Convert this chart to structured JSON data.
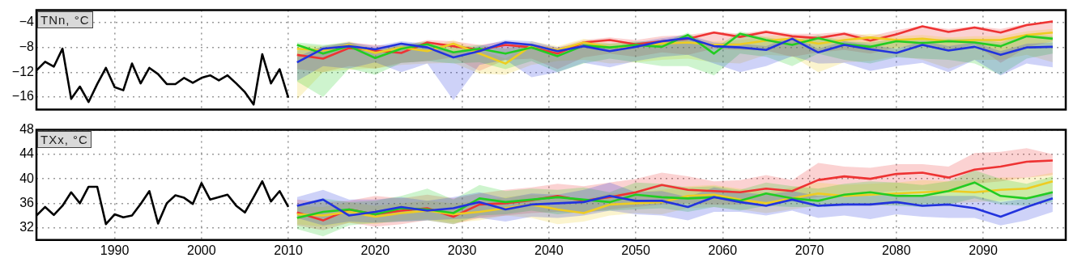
{
  "chart_data": [
    {
      "type": "line",
      "title": "TNn, °C",
      "xlim": [
        1981,
        2099.5
      ],
      "xticks": [
        1990,
        2000,
        2010,
        2020,
        2030,
        2040,
        2050,
        2060,
        2070,
        2080,
        2090
      ],
      "ylim": [
        -18,
        -2
      ],
      "yticks": [
        -4,
        -8,
        -12,
        -16
      ],
      "grid": true,
      "tick_labels": "y",
      "line_style": "solid",
      "marker": "none",
      "series": [
        {
          "color": "#000000",
          "x": [
            1981,
            1982,
            1983,
            1984,
            1985,
            1986,
            1987,
            1988,
            1989,
            1990,
            1991,
            1992,
            1993,
            1994,
            1995,
            1996,
            1997,
            1998,
            1999,
            2000,
            2001,
            2002,
            2003,
            2004,
            2005,
            2006,
            2007,
            2008,
            2009,
            2010
          ],
          "values": [
            -11.7,
            -10.3,
            -11.1,
            -8.2,
            -16.3,
            -14.3,
            -16.8,
            -13.9,
            -11.3,
            -14.4,
            -14.9,
            -10.6,
            -13.8,
            -11.3,
            -12.3,
            -13.9,
            -13.9,
            -12.9,
            -13.7,
            -12.9,
            -12.5,
            -13.3,
            -12.5,
            -13.8,
            -15.2,
            -17.2,
            -9.1,
            -13.8,
            -11.5,
            -16.1
          ]
        },
        {
          "color": "#2233dd",
          "x": [
            2011,
            2014,
            2017,
            2020,
            2023,
            2026,
            2029,
            2032,
            2035,
            2038,
            2041,
            2044,
            2047,
            2050,
            2053,
            2056,
            2059,
            2062,
            2065,
            2068,
            2071,
            2074,
            2077,
            2080,
            2083,
            2086,
            2089,
            2092,
            2095,
            2098
          ],
          "values": [
            -10.4,
            -8.2,
            -7.8,
            -8.3,
            -7.4,
            -8.0,
            -9.6,
            -8.6,
            -7.2,
            -7.6,
            -8.6,
            -7.8,
            -8.6,
            -7.9,
            -7.0,
            -6.5,
            -7.8,
            -8.0,
            -8.4,
            -6.6,
            -8.8,
            -7.6,
            -8.3,
            -8.9,
            -7.6,
            -8.5,
            -7.9,
            -9.2,
            -8.0,
            -7.9
          ],
          "lower": [
            -13.4,
            -11.0,
            -11.4,
            -10.4,
            -12.0,
            -10.6,
            -16.5,
            -10.8,
            -10.0,
            -12.8,
            -12.0,
            -10.5,
            -11.2,
            -10.2,
            -9.5,
            -9.2,
            -10.6,
            -12.0,
            -11.0,
            -9.4,
            -10.6,
            -10.5,
            -11.8,
            -11.0,
            -10.5,
            -12.0,
            -10.0,
            -12.5,
            -10.6,
            -11.2
          ],
          "upper": [
            -9.5,
            -7.8,
            -7.2,
            -7.8,
            -7.0,
            -7.4,
            -8.8,
            -7.8,
            -6.8,
            -7.0,
            -8.0,
            -7.3,
            -8.0,
            -7.2,
            -6.5,
            -6.0,
            -7.2,
            -7.4,
            -7.8,
            -6.2,
            -8.2,
            -7.0,
            -7.6,
            -8.2,
            -7.0,
            -7.8,
            -7.2,
            -8.6,
            -7.4,
            -7.2
          ]
        },
        {
          "color": "#22cc22",
          "x": [
            2011,
            2014,
            2017,
            2020,
            2023,
            2026,
            2029,
            2032,
            2035,
            2038,
            2041,
            2044,
            2047,
            2050,
            2053,
            2056,
            2059,
            2062,
            2065,
            2068,
            2071,
            2074,
            2077,
            2080,
            2083,
            2086,
            2089,
            2092,
            2095,
            2098
          ],
          "values": [
            -7.6,
            -9.0,
            -7.8,
            -9.7,
            -8.2,
            -7.5,
            -8.8,
            -8.2,
            -9.0,
            -8.0,
            -9.4,
            -7.7,
            -8.0,
            -7.6,
            -7.9,
            -6.0,
            -9.0,
            -5.8,
            -6.8,
            -7.6,
            -6.5,
            -7.5,
            -7.9,
            -7.0,
            -7.3,
            -7.0,
            -7.2,
            -7.8,
            -6.2,
            -6.6
          ],
          "lower": [
            -13.5,
            -16.0,
            -11.4,
            -12.4,
            -10.5,
            -10.2,
            -10.6,
            -10.4,
            -11.5,
            -10.2,
            -12.0,
            -10.6,
            -9.8,
            -10.4,
            -11.0,
            -11.0,
            -12.5,
            -9.0,
            -9.5,
            -11.0,
            -9.0,
            -10.0,
            -10.6,
            -9.6,
            -9.8,
            -10.0,
            -10.6,
            -12.4,
            -9.8,
            -9.0
          ],
          "upper": [
            -7.2,
            -7.6,
            -7.2,
            -8.6,
            -7.6,
            -7.0,
            -8.0,
            -7.6,
            -8.2,
            -7.4,
            -8.6,
            -7.2,
            -7.4,
            -7.0,
            -7.2,
            -5.6,
            -8.2,
            -5.4,
            -6.4,
            -7.0,
            -6.0,
            -7.0,
            -7.2,
            -6.6,
            -6.8,
            -6.6,
            -6.6,
            -7.2,
            -5.8,
            -6.2
          ]
        },
        {
          "color": "#eecc22",
          "x": [
            2011,
            2014,
            2017,
            2020,
            2023,
            2026,
            2029,
            2032,
            2035,
            2038,
            2041,
            2044,
            2047,
            2050,
            2053,
            2056,
            2059,
            2062,
            2065,
            2068,
            2071,
            2074,
            2077,
            2080,
            2083,
            2086,
            2089,
            2092,
            2095,
            2098
          ],
          "values": [
            -8.2,
            -8.5,
            -7.6,
            -8.9,
            -8.0,
            -8.6,
            -7.4,
            -9.0,
            -10.6,
            -7.7,
            -8.4,
            -7.2,
            -8.0,
            -7.8,
            -7.4,
            -7.2,
            -7.6,
            -7.5,
            -6.9,
            -6.6,
            -7.4,
            -6.8,
            -6.4,
            -6.8,
            -6.6,
            -7.0,
            -6.8,
            -6.8,
            -6.0,
            -5.6
          ],
          "lower": [
            -16.4,
            -12.0,
            -11.6,
            -11.4,
            -10.8,
            -10.6,
            -10.5,
            -12.2,
            -12.4,
            -10.8,
            -10.2,
            -10.0,
            -10.6,
            -10.4,
            -10.0,
            -9.8,
            -10.4,
            -10.6,
            -9.2,
            -9.4,
            -12.0,
            -10.4,
            -10.2,
            -9.4,
            -10.0,
            -11.4,
            -10.0,
            -10.0,
            -9.2,
            -10.4
          ],
          "upper": [
            -7.6,
            -7.8,
            -7.0,
            -8.2,
            -7.4,
            -8.0,
            -6.8,
            -8.4,
            -9.8,
            -7.0,
            -7.8,
            -6.6,
            -7.4,
            -7.2,
            -6.8,
            -6.6,
            -7.0,
            -6.8,
            -6.2,
            -6.0,
            -6.8,
            -6.2,
            -5.8,
            -6.2,
            -6.0,
            -6.4,
            -6.2,
            -6.2,
            -5.4,
            -5.0
          ]
        },
        {
          "color": "#ee3333",
          "x": [
            2011,
            2014,
            2017,
            2020,
            2023,
            2026,
            2029,
            2032,
            2035,
            2038,
            2041,
            2044,
            2047,
            2050,
            2053,
            2056,
            2059,
            2062,
            2065,
            2068,
            2071,
            2074,
            2077,
            2080,
            2083,
            2086,
            2089,
            2092,
            2095,
            2098
          ],
          "values": [
            -9.2,
            -9.8,
            -8.1,
            -8.5,
            -8.9,
            -7.2,
            -7.8,
            -8.4,
            -7.6,
            -8.0,
            -9.0,
            -7.2,
            -6.8,
            -7.5,
            -7.0,
            -6.6,
            -5.6,
            -6.3,
            -5.5,
            -6.2,
            -6.5,
            -5.8,
            -6.9,
            -5.9,
            -4.6,
            -5.5,
            -4.8,
            -5.6,
            -4.4,
            -3.8
          ],
          "lower": [
            -11.5,
            -12.0,
            -11.0,
            -11.4,
            -10.5,
            -10.2,
            -9.6,
            -11.8,
            -10.0,
            -9.8,
            -11.5,
            -9.6,
            -9.0,
            -9.5,
            -8.8,
            -9.2,
            -8.2,
            -8.4,
            -8.5,
            -9.5,
            -8.8,
            -8.4,
            -9.0,
            -8.0,
            -7.8,
            -8.6,
            -7.5,
            -10.5,
            -8.0,
            -7.0
          ],
          "upper": [
            -8.5,
            -8.0,
            -7.2,
            -7.6,
            -7.8,
            -6.8,
            -7.0,
            -7.6,
            -7.0,
            -7.4,
            -8.0,
            -6.8,
            -6.4,
            -6.8,
            -6.2,
            -6.0,
            -5.4,
            -5.8,
            -5.2,
            -5.8,
            -5.8,
            -5.5,
            -6.2,
            -5.2,
            -4.5,
            -5.0,
            -4.6,
            -5.0,
            -4.2,
            -3.6
          ]
        }
      ]
    },
    {
      "type": "line",
      "title": "TXx, °C",
      "xlim": [
        1981,
        2099.5
      ],
      "xticks": [
        1990,
        2000,
        2010,
        2020,
        2030,
        2040,
        2050,
        2060,
        2070,
        2080,
        2090
      ],
      "ylim": [
        30,
        48
      ],
      "yticks": [
        32,
        36,
        40,
        44,
        48
      ],
      "grid": true,
      "line_style": "solid",
      "marker": "none",
      "series": [
        {
          "color": "#000000",
          "x": [
            1981,
            1982,
            1983,
            1984,
            1985,
            1986,
            1987,
            1988,
            1989,
            1990,
            1991,
            1992,
            1993,
            1994,
            1995,
            1996,
            1997,
            1998,
            1999,
            2000,
            2001,
            2002,
            2003,
            2004,
            2005,
            2006,
            2007,
            2008,
            2009,
            2010
          ],
          "values": [
            34.0,
            35.4,
            34.1,
            35.6,
            37.8,
            36.0,
            38.7,
            38.7,
            32.6,
            34.2,
            33.7,
            34.0,
            35.9,
            38.0,
            32.7,
            36.0,
            37.3,
            36.9,
            35.9,
            39.3,
            36.6,
            37.0,
            37.4,
            35.6,
            34.5,
            37.0,
            39.6,
            36.3,
            38.0,
            35.4
          ]
        },
        {
          "color": "#2233dd",
          "x": [
            2011,
            2014,
            2017,
            2020,
            2023,
            2026,
            2029,
            2032,
            2035,
            2038,
            2041,
            2044,
            2047,
            2050,
            2053,
            2056,
            2059,
            2062,
            2065,
            2068,
            2071,
            2074,
            2077,
            2080,
            2083,
            2086,
            2089,
            2092,
            2095,
            2098
          ],
          "values": [
            35.6,
            36.6,
            34.0,
            34.6,
            35.4,
            34.8,
            35.2,
            36.2,
            35.0,
            35.8,
            36.0,
            36.2,
            37.2,
            36.4,
            36.4,
            35.4,
            37.0,
            36.2,
            35.6,
            36.6,
            35.6,
            35.8,
            35.8,
            36.2,
            35.6,
            35.8,
            35.2,
            33.8,
            35.4,
            36.8
          ],
          "lower": [
            33.6,
            32.4,
            33.0,
            32.8,
            33.0,
            33.2,
            33.4,
            33.6,
            33.0,
            33.8,
            33.6,
            34.0,
            34.8,
            34.2,
            34.0,
            33.2,
            34.6,
            34.6,
            34.0,
            34.8,
            33.6,
            34.0,
            33.4,
            34.2,
            33.8,
            33.6,
            33.6,
            32.4,
            33.2,
            34.6
          ],
          "upper": [
            37.0,
            38.2,
            36.6,
            36.6,
            37.0,
            36.4,
            37.0,
            37.8,
            36.8,
            37.6,
            37.4,
            38.2,
            39.4,
            37.8,
            38.0,
            37.0,
            38.6,
            37.8,
            37.4,
            38.0,
            37.2,
            37.4,
            37.2,
            37.6,
            37.2,
            37.2,
            37.2,
            36.2,
            36.8,
            38.0
          ]
        },
        {
          "color": "#22cc22",
          "x": [
            2011,
            2014,
            2017,
            2020,
            2023,
            2026,
            2029,
            2032,
            2035,
            2038,
            2041,
            2044,
            2047,
            2050,
            2053,
            2056,
            2059,
            2062,
            2065,
            2068,
            2071,
            2074,
            2077,
            2080,
            2083,
            2086,
            2089,
            2092,
            2095,
            2098
          ],
          "values": [
            33.6,
            34.6,
            35.0,
            34.2,
            35.2,
            35.0,
            34.4,
            36.8,
            36.2,
            36.6,
            37.0,
            36.6,
            36.2,
            37.4,
            37.0,
            36.8,
            37.0,
            36.4,
            37.6,
            36.8,
            36.4,
            37.4,
            37.8,
            37.2,
            37.2,
            38.0,
            39.4,
            37.2,
            36.8,
            37.8
          ],
          "lower": [
            31.8,
            30.6,
            32.4,
            32.8,
            33.0,
            33.2,
            32.6,
            34.0,
            34.2,
            34.8,
            34.2,
            34.6,
            34.8,
            35.0,
            35.2,
            34.6,
            35.4,
            34.8,
            35.6,
            35.4,
            35.4,
            35.6,
            35.8,
            35.6,
            35.4,
            35.8,
            36.8,
            35.8,
            35.6,
            36.2
          ],
          "upper": [
            35.8,
            36.8,
            36.2,
            36.4,
            37.2,
            38.4,
            36.6,
            39.0,
            38.0,
            38.4,
            38.2,
            38.6,
            37.8,
            39.4,
            39.2,
            38.6,
            38.8,
            38.2,
            39.4,
            38.8,
            38.4,
            39.2,
            39.6,
            39.4,
            39.0,
            39.6,
            41.4,
            40.0,
            39.2,
            40.4
          ]
        },
        {
          "color": "#eecc22",
          "x": [
            2011,
            2014,
            2017,
            2020,
            2023,
            2026,
            2029,
            2032,
            2035,
            2038,
            2041,
            2044,
            2047,
            2050,
            2053,
            2056,
            2059,
            2062,
            2065,
            2068,
            2071,
            2074,
            2077,
            2080,
            2083,
            2086,
            2089,
            2092,
            2095,
            2098
          ],
          "values": [
            34.2,
            34.0,
            34.6,
            33.8,
            34.4,
            34.8,
            34.2,
            34.6,
            35.2,
            35.8,
            35.0,
            34.4,
            35.8,
            36.0,
            36.2,
            37.2,
            37.4,
            36.6,
            36.0,
            36.8,
            37.6,
            37.2,
            37.4,
            37.6,
            37.8,
            38.0,
            37.8,
            38.2,
            38.4,
            39.6
          ],
          "lower": [
            32.6,
            32.2,
            32.8,
            32.6,
            33.2,
            33.4,
            32.8,
            33.2,
            34.0,
            33.6,
            32.6,
            33.0,
            34.0,
            34.4,
            34.2,
            35.2,
            35.4,
            35.0,
            34.4,
            35.0,
            35.6,
            35.8,
            35.6,
            35.8,
            36.0,
            36.0,
            36.2,
            36.4,
            36.8,
            37.2
          ],
          "upper": [
            35.6,
            35.4,
            36.2,
            35.6,
            36.0,
            36.4,
            36.0,
            36.4,
            37.0,
            37.4,
            37.2,
            36.6,
            37.6,
            37.8,
            38.2,
            38.8,
            39.0,
            38.4,
            37.8,
            38.6,
            39.4,
            39.0,
            39.2,
            39.4,
            39.8,
            39.6,
            39.8,
            40.2,
            40.2,
            41.0
          ]
        },
        {
          "color": "#ee3333",
          "x": [
            2011,
            2014,
            2017,
            2020,
            2023,
            2026,
            2029,
            2032,
            2035,
            2038,
            2041,
            2044,
            2047,
            2050,
            2053,
            2056,
            2059,
            2062,
            2065,
            2068,
            2071,
            2074,
            2077,
            2080,
            2083,
            2086,
            2089,
            2092,
            2095,
            2098
          ],
          "values": [
            34.5,
            33.2,
            35.0,
            34.2,
            34.8,
            35.2,
            33.8,
            35.8,
            36.0,
            36.5,
            37.2,
            36.4,
            37.0,
            37.8,
            39.0,
            38.2,
            38.0,
            37.8,
            38.4,
            38.0,
            39.8,
            40.4,
            40.0,
            40.8,
            41.0,
            40.2,
            41.5,
            42.0,
            42.8,
            43.0
          ],
          "lower": [
            32.4,
            31.6,
            32.8,
            32.2,
            32.6,
            33.2,
            32.6,
            33.6,
            34.0,
            34.4,
            34.6,
            34.4,
            35.0,
            35.4,
            35.8,
            36.0,
            35.8,
            35.8,
            36.0,
            36.4,
            37.0,
            37.4,
            37.6,
            38.0,
            38.2,
            37.8,
            39.2,
            39.6,
            40.2,
            40.6
          ],
          "upper": [
            36.6,
            36.2,
            36.4,
            37.2,
            36.8,
            37.4,
            36.8,
            37.6,
            38.2,
            38.6,
            39.2,
            38.8,
            39.4,
            40.0,
            41.0,
            40.4,
            39.6,
            39.8,
            40.6,
            39.8,
            42.6,
            42.0,
            41.8,
            42.4,
            42.4,
            42.0,
            44.2,
            44.4,
            45.0,
            44.0
          ]
        }
      ]
    }
  ]
}
